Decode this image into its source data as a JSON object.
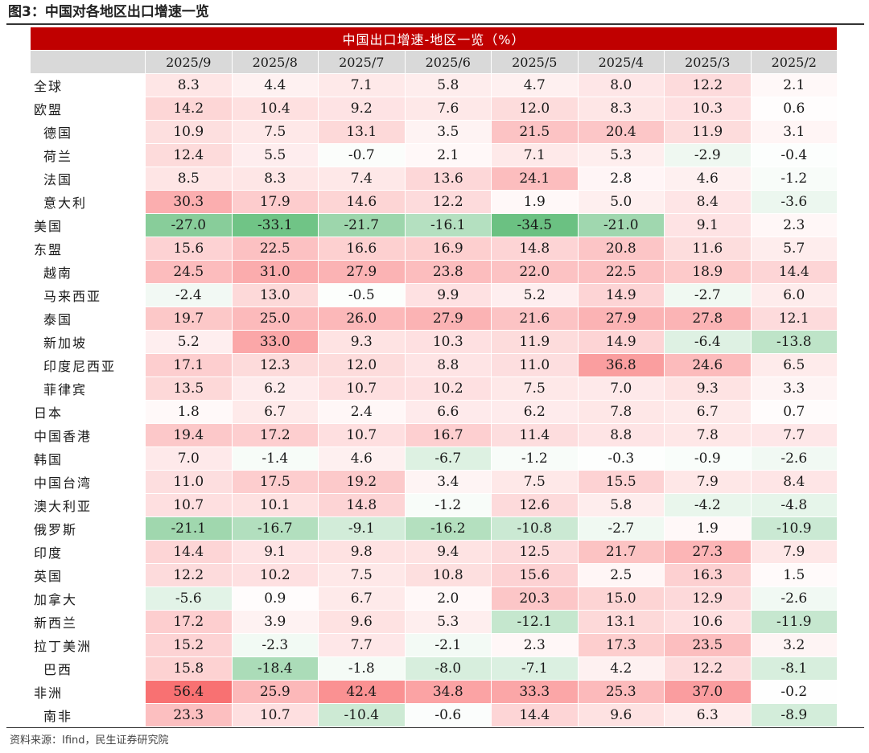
{
  "figure_title": "图3：中国对各地区出口增速一览",
  "source": "资料来源：Ifind，民生证券研究院",
  "chart_data": {
    "type": "table",
    "title": "中国出口增速-地区一览（%）",
    "columns": [
      "2025/9",
      "2025/8",
      "2025/7",
      "2025/6",
      "2025/5",
      "2025/4",
      "2025/3",
      "2025/2"
    ],
    "rows": [
      {
        "region": "全球",
        "sub": false,
        "values": [
          8.3,
          4.4,
          7.1,
          5.8,
          4.7,
          8.0,
          12.2,
          2.1
        ]
      },
      {
        "region": "欧盟",
        "sub": false,
        "values": [
          14.2,
          10.4,
          9.2,
          7.6,
          12.0,
          8.3,
          10.3,
          0.6
        ]
      },
      {
        "region": "德国",
        "sub": true,
        "values": [
          10.9,
          7.5,
          13.1,
          3.5,
          21.5,
          20.4,
          11.9,
          3.1
        ]
      },
      {
        "region": "荷兰",
        "sub": true,
        "values": [
          12.4,
          5.5,
          -0.7,
          2.1,
          7.1,
          5.3,
          -2.9,
          -0.4
        ]
      },
      {
        "region": "法国",
        "sub": true,
        "values": [
          8.5,
          8.3,
          7.4,
          13.6,
          24.1,
          2.8,
          4.6,
          -1.2
        ]
      },
      {
        "region": "意大利",
        "sub": true,
        "values": [
          30.3,
          17.9,
          14.6,
          12.2,
          1.9,
          5.0,
          8.4,
          -3.6
        ]
      },
      {
        "region": "美国",
        "sub": false,
        "values": [
          -27.0,
          -33.1,
          -21.7,
          -16.1,
          -34.5,
          -21.0,
          9.1,
          2.3
        ]
      },
      {
        "region": "东盟",
        "sub": false,
        "values": [
          15.6,
          22.5,
          16.6,
          16.9,
          14.8,
          20.8,
          11.6,
          5.7
        ]
      },
      {
        "region": "越南",
        "sub": true,
        "values": [
          24.5,
          31.0,
          27.9,
          23.8,
          22.0,
          22.5,
          18.9,
          14.4
        ]
      },
      {
        "region": "马来西亚",
        "sub": true,
        "values": [
          -2.4,
          13.0,
          -0.5,
          9.9,
          5.2,
          14.9,
          -2.7,
          6.0
        ]
      },
      {
        "region": "泰国",
        "sub": true,
        "values": [
          19.7,
          25.0,
          26.0,
          27.9,
          21.6,
          27.9,
          27.8,
          12.1
        ]
      },
      {
        "region": "新加坡",
        "sub": true,
        "values": [
          5.2,
          33.0,
          9.3,
          10.3,
          11.9,
          14.9,
          -6.4,
          -13.8
        ]
      },
      {
        "region": "印度尼西亚",
        "sub": true,
        "values": [
          17.1,
          12.3,
          12.0,
          8.8,
          11.0,
          36.8,
          24.6,
          6.5
        ]
      },
      {
        "region": "菲律宾",
        "sub": true,
        "values": [
          13.5,
          6.2,
          10.7,
          10.2,
          7.5,
          7.0,
          9.3,
          3.3
        ]
      },
      {
        "region": "日本",
        "sub": false,
        "values": [
          1.8,
          6.7,
          2.4,
          6.6,
          6.2,
          7.8,
          6.7,
          0.7
        ]
      },
      {
        "region": "中国香港",
        "sub": false,
        "values": [
          19.4,
          17.2,
          10.7,
          16.7,
          11.4,
          8.8,
          7.8,
          7.7
        ]
      },
      {
        "region": "韩国",
        "sub": false,
        "values": [
          7.0,
          -1.4,
          4.6,
          -6.7,
          -1.2,
          -0.3,
          -0.9,
          -2.6
        ]
      },
      {
        "region": "中国台湾",
        "sub": false,
        "values": [
          11.0,
          17.5,
          19.2,
          3.4,
          7.5,
          15.5,
          7.9,
          8.4
        ]
      },
      {
        "region": "澳大利亚",
        "sub": false,
        "values": [
          10.7,
          10.1,
          14.8,
          -1.2,
          12.6,
          5.8,
          -4.2,
          -4.8
        ]
      },
      {
        "region": "俄罗斯",
        "sub": false,
        "values": [
          -21.1,
          -16.7,
          -9.1,
          -16.2,
          -10.8,
          -2.7,
          1.9,
          -10.9
        ]
      },
      {
        "region": "印度",
        "sub": false,
        "values": [
          14.4,
          9.1,
          9.8,
          9.4,
          12.5,
          21.7,
          27.3,
          7.9
        ]
      },
      {
        "region": "英国",
        "sub": false,
        "values": [
          12.2,
          10.2,
          7.5,
          10.8,
          15.6,
          2.5,
          16.3,
          1.5
        ]
      },
      {
        "region": "加拿大",
        "sub": false,
        "values": [
          -5.6,
          0.9,
          6.7,
          2.0,
          20.3,
          15.0,
          12.9,
          -2.6
        ]
      },
      {
        "region": "新西兰",
        "sub": false,
        "values": [
          17.2,
          3.9,
          9.6,
          5.3,
          -12.1,
          13.1,
          10.6,
          -11.9
        ]
      },
      {
        "region": "拉丁美洲",
        "sub": false,
        "values": [
          15.2,
          -2.3,
          7.7,
          -2.1,
          2.3,
          17.3,
          23.5,
          3.2
        ]
      },
      {
        "region": "巴西",
        "sub": true,
        "values": [
          15.8,
          -18.4,
          -1.8,
          -8.0,
          -7.1,
          4.2,
          12.2,
          -8.1
        ]
      },
      {
        "region": "非洲",
        "sub": false,
        "values": [
          56.4,
          25.9,
          42.4,
          34.8,
          33.3,
          25.3,
          37.0,
          -0.2
        ]
      },
      {
        "region": "南非",
        "sub": true,
        "values": [
          23.3,
          10.7,
          -10.4,
          -0.6,
          14.4,
          9.6,
          6.3,
          -8.9
        ]
      }
    ],
    "colors": {
      "positive": "#f8696b",
      "negative": "#63be7b",
      "neutral": "#ffffff",
      "banner": "#c00000",
      "header": "#d9d9d9"
    }
  }
}
